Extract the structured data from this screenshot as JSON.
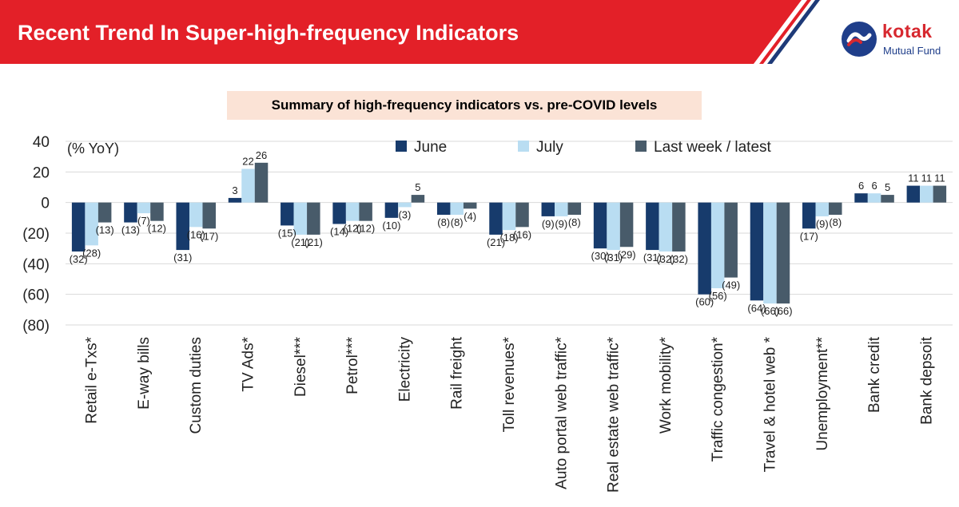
{
  "header": {
    "title": "Recent Trend In Super-high-frequency Indicators",
    "logo_name": "kotak",
    "logo_subtitle": "Mutual Fund"
  },
  "colors": {
    "banner_red": "#e32028",
    "banner_blue": "#1e3a78",
    "june": "#173b6c",
    "july": "#b9ddf2",
    "latest": "#485b6a"
  },
  "chart_data": {
    "type": "bar",
    "title": "Summary of high-frequency indicators vs. pre-COVID levels",
    "ylabel": "(% YoY)",
    "xlabel": "",
    "ylim": [
      -80,
      40
    ],
    "yticks": [
      {
        "value": 40,
        "label": "40"
      },
      {
        "value": 20,
        "label": "20"
      },
      {
        "value": 0,
        "label": "0"
      },
      {
        "value": -20,
        "label": "(20)"
      },
      {
        "value": -40,
        "label": "(40)"
      },
      {
        "value": -60,
        "label": "(60)"
      },
      {
        "value": -80,
        "label": "(80)"
      }
    ],
    "grid": true,
    "legend_position": "top",
    "categories": [
      "Retail e-Txs*",
      "E-way bills",
      "Custom duties",
      "TV Ads*",
      "Diesel***",
      "Petrol***",
      "Electricity",
      "Rail freight",
      "Toll revenues*",
      "Auto portal web traffic*",
      "Real estate web traffic*",
      "Work mobility*",
      "Traffic congestion*",
      "Travel & hotel web *",
      "Unemployment**",
      "Bank credit",
      "Bank depsoit"
    ],
    "series": [
      {
        "name": "June",
        "values": [
          -32,
          -13,
          -31,
          3,
          -15,
          -14,
          -10,
          -8,
          -21,
          -9,
          -30,
          -31,
          -60,
          -64,
          -17,
          6,
          11
        ],
        "labels": [
          "(32)",
          "(13)",
          "(31)",
          "3",
          "(15)",
          "(14)",
          "(10)",
          "(8)",
          "(21)",
          "(9)",
          "(30)",
          "(31)",
          "(60)",
          "(64)",
          "(17)",
          "6",
          "11"
        ]
      },
      {
        "name": "July",
        "values": [
          -28,
          -7,
          -16,
          22,
          -21,
          -12,
          -3,
          -8,
          -18,
          -9,
          -31,
          -32,
          -56,
          -66,
          -9,
          6,
          11
        ],
        "labels": [
          "(28)",
          "(7)",
          "(16)",
          "22",
          "(21)",
          "(12)",
          "(3)",
          "(8)",
          "(18)",
          "(9)",
          "(31)",
          "(32)",
          "(56)",
          "(66)",
          "(9)",
          "6",
          "11"
        ]
      },
      {
        "name": "Last week / latest",
        "values": [
          -13,
          -12,
          -17,
          26,
          -21,
          -12,
          5,
          -4,
          -16,
          -8,
          -29,
          -32,
          -49,
          -66,
          -8,
          5,
          11
        ],
        "labels": [
          "(13)",
          "(12)",
          "(17)",
          "26",
          "(21)",
          "(12)",
          "5",
          "(4)",
          "(16)",
          "(8)",
          "(29)",
          "(32)",
          "(49)",
          "(66)",
          "(8)",
          "5",
          "11"
        ]
      }
    ]
  }
}
